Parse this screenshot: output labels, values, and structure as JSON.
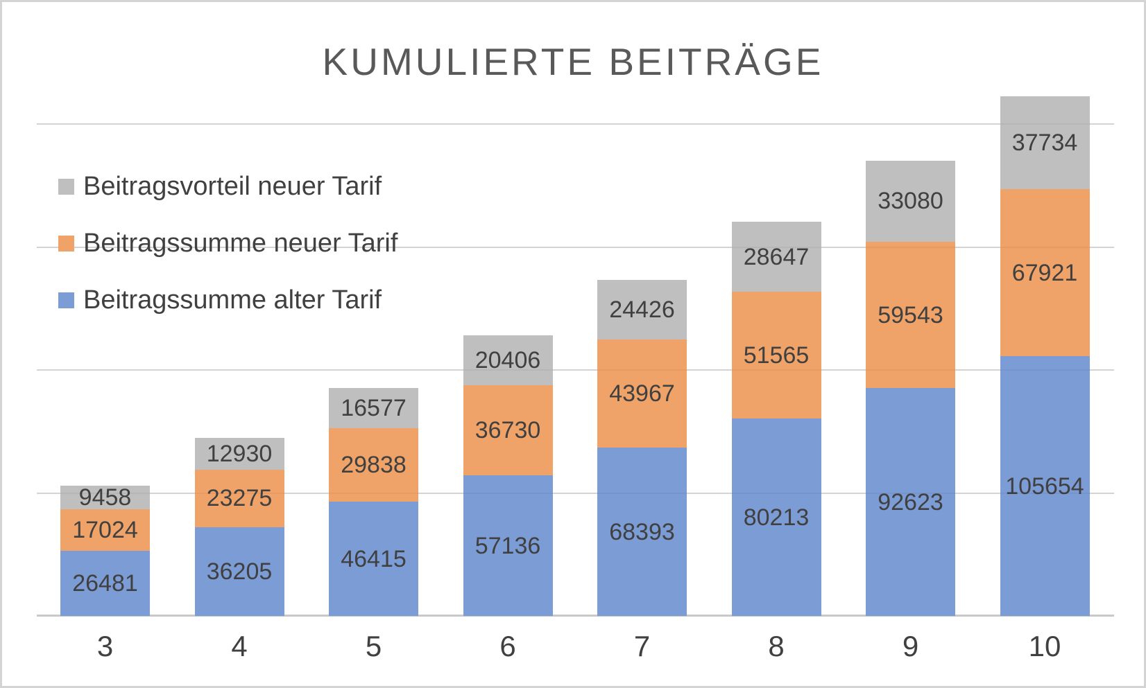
{
  "chart_data": {
    "type": "bar",
    "stacked": true,
    "title": "KUMULIERTE BEITRÄGE",
    "categories": [
      "3",
      "4",
      "5",
      "6",
      "7",
      "8",
      "9",
      "10"
    ],
    "series": [
      {
        "name": "Beitragssumme alter Tarif",
        "color": "#7C9CD6",
        "values": [
          26481,
          36205,
          46415,
          57136,
          68393,
          80213,
          92623,
          105654
        ]
      },
      {
        "name": "Beitragssumme neuer Tarif",
        "color": "#F0A368",
        "values": [
          17024,
          23275,
          29838,
          36730,
          43967,
          51565,
          59543,
          67921
        ]
      },
      {
        "name": "Beitragsvorteil neuer Tarif",
        "color": "#BFBFBF",
        "values": [
          9458,
          12930,
          16577,
          20406,
          24426,
          28647,
          33080,
          37734
        ]
      }
    ],
    "legend_items": [
      {
        "label": "Beitragsvorteil neuer Tarif",
        "color": "#BFBFBF"
      },
      {
        "label": "Beitragssumme neuer Tarif",
        "color": "#F0A368"
      },
      {
        "label": "Beitragssumme alter Tarif",
        "color": "#7C9CD6"
      }
    ],
    "xlabel": "",
    "ylabel": "",
    "ylim": [
      0,
      250000
    ],
    "gridline_interval": 50000,
    "grid": true,
    "y_tick_labels": "none",
    "legend_position": "upper-left-overlay",
    "data_labels": "inside-center"
  },
  "palette": {
    "title_text": "#595959",
    "label_text": "#404040",
    "axis_text": "#404040",
    "gridline": "#DDDDDD",
    "axis_line": "#C9C9C9",
    "frame_border": "#D4D4D4",
    "background": "#FFFFFF"
  }
}
